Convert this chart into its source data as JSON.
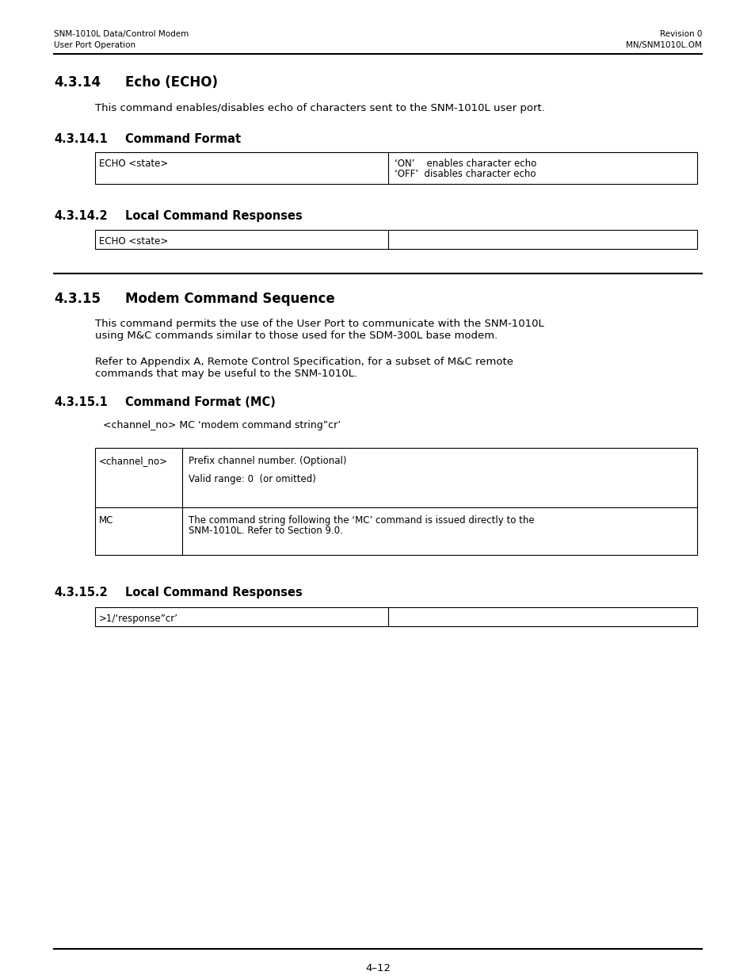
{
  "header_left_line1": "SNM-1010L Data/Control Modem",
  "header_left_line2": "User Port Operation",
  "header_right_line1": "Revision 0",
  "header_right_line2": "MN/SNM1010L.OM",
  "footer_text": "4–12",
  "section_414_title_num": "4.3.14",
  "section_414_title_text": "Echo (ECHO)",
  "section_414_body": "This command enables/disables echo of characters sent to the SNM-1010L user port.",
  "section_4141_title_num": "4.3.14.1",
  "section_4141_title_text": "Command Format",
  "table1_col1": "ECHO <state>",
  "table1_col2_line1": "‘ON’    enables character echo",
  "table1_col2_line2": "‘OFF’  disables character echo",
  "section_4142_title_num": "4.3.14.2",
  "section_4142_title_text": "Local Command Responses",
  "table2_col1": "ECHO <state>",
  "section_415_title_num": "4.3.15",
  "section_415_title_text": "Modem Command Sequence",
  "section_415_body1_line1": "This command permits the use of the User Port to communicate with the SNM-1010L",
  "section_415_body1_line2": "using M&C commands similar to those used for the SDM-300L base modem.",
  "section_415_body2_line1": "Refer to Appendix A, Remote Control Specification, for a subset of M&C remote",
  "section_415_body2_line2": "commands that may be useful to the SNM-1010L.",
  "section_4151_title_num": "4.3.15.1",
  "section_4151_title_text": "Command Format (MC)",
  "section_4151_cmd": "<channel_no> MC ‘modem command string”cr’",
  "table3_row1_col1": "<channel_no>",
  "table3_row1_col2_line1": "Prefix channel number. (Optional)",
  "table3_row1_col2_line2": "Valid range: 0  (or omitted)",
  "table3_row2_col1": "MC",
  "table3_row2_col2_line1": "The command string following the ‘MC’ command is issued directly to the",
  "table3_row2_col2_line2": "SNM-1010L. Refer to Section 9.0.",
  "section_4152_title_num": "4.3.15.2",
  "section_4152_title_text": "Local Command Responses",
  "table4_col1": ">1/‘response”cr’",
  "bg_color": "#ffffff",
  "text_color": "#000000"
}
